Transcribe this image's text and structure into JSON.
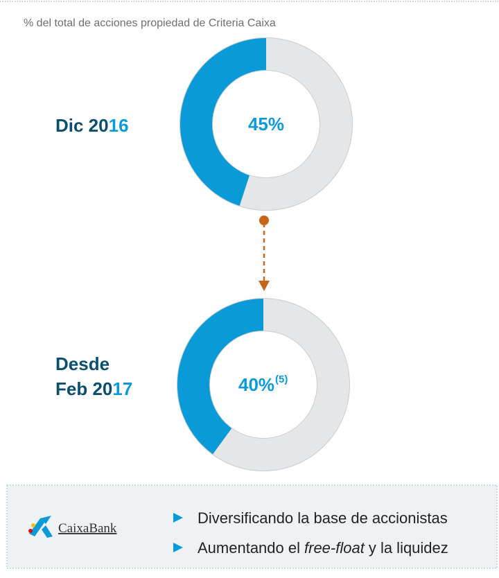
{
  "subtitle": "% del total de acciones propiedad de Criteria Caixa",
  "chart_data": [
    {
      "type": "donut",
      "label_lines": [
        "Dic 2016"
      ],
      "values": [
        45
      ],
      "value_labels": [
        "45%"
      ],
      "color": "#0a9ad7",
      "rest_color": "#e4e6e8"
    },
    {
      "type": "donut",
      "label_lines": [
        "Desde",
        "Feb 2017"
      ],
      "values": [
        40
      ],
      "value_labels": [
        "40%"
      ],
      "footnote": "(5)",
      "color": "#0a9ad7",
      "rest_color": "#e4e6e8"
    }
  ],
  "box": {
    "logo": "CaixaBank",
    "bullets": [
      {
        "before": "Diversificando la base de accionistas"
      },
      {
        "before": "Aumentando el",
        "italic": "free-float",
        "after": "y la liquidez"
      }
    ]
  }
}
